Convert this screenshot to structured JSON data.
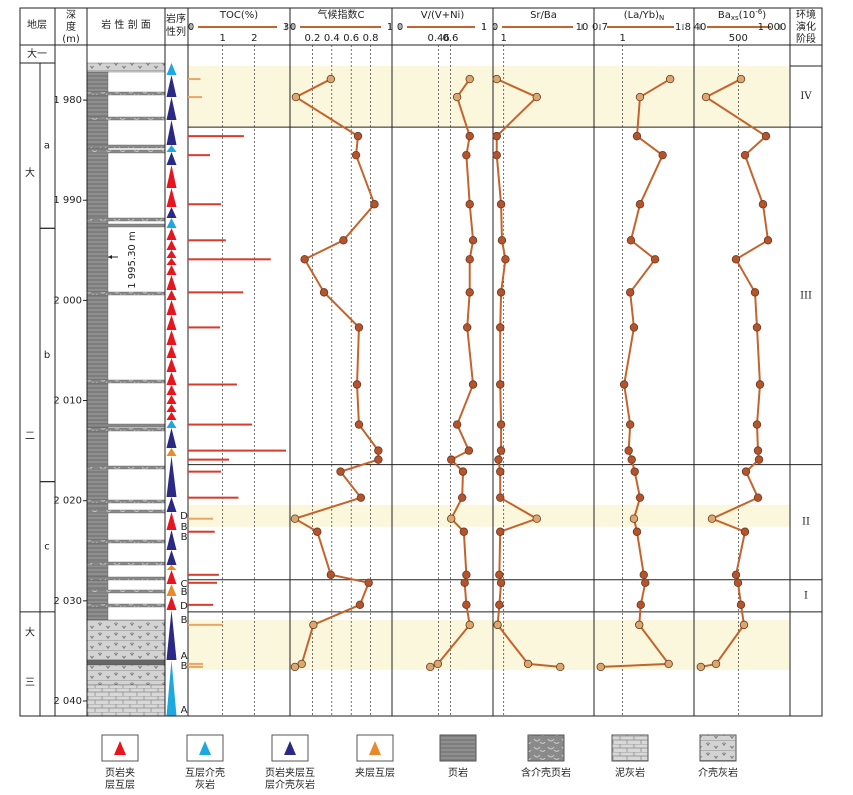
{
  "header": {
    "strata": "地层",
    "depth": [
      "深",
      "度",
      "(m)"
    ],
    "lithology": "岩 性 剖 面",
    "sequence": [
      "岩序",
      "性列"
    ],
    "stage": [
      "环境",
      "演化",
      "阶段"
    ]
  },
  "strata": [
    {
      "lines": [
        "大一"
      ],
      "top": 1974.5,
      "base": 1976.3
    },
    {
      "lines": [
        "大",
        "二"
      ],
      "top": 1976.3,
      "base": 2031.1
    },
    {
      "lines": [
        "大",
        "三"
      ],
      "top": 2031.1,
      "base": 2041.5
    }
  ],
  "members": [
    {
      "label": "a",
      "top": 1976.3,
      "base": 1992.8
    },
    {
      "label": "b",
      "top": 1992.8,
      "base": 2018.1
    },
    {
      "label": "c",
      "top": 2018.1,
      "base": 2031.1
    }
  ],
  "annotation": "1 995.30 m",
  "sequence_marks": [
    "D",
    "B",
    "B",
    "C",
    "B",
    "D",
    "B",
    "A",
    "B",
    "A"
  ],
  "legend": [
    {
      "lines": [
        "页岩夹",
        "层互层"
      ],
      "color": "#e8141e"
    },
    {
      "lines": [
        "互层介壳",
        "灰岩"
      ],
      "color": "#1ea8e0"
    },
    {
      "lines": [
        "页岩夹层互",
        "层介壳灰岩"
      ],
      "color": "#2a2a86"
    },
    {
      "lines": [
        "夹层互层"
      ],
      "color": "#e88a2a"
    },
    {
      "lines": [
        "页岩"
      ]
    },
    {
      "lines": [
        "含介壳页岩"
      ]
    },
    {
      "lines": [
        "泥灰岩"
      ]
    },
    {
      "lines": [
        "介壳灰岩"
      ]
    }
  ],
  "chart_data": {
    "type": "well-log",
    "ylim": [
      1974.5,
      2041.5
    ],
    "yticks": [
      {
        "value": 1980,
        "label": "1 980"
      },
      {
        "value": 1990,
        "label": "1 990"
      },
      {
        "value": 2000,
        "label": "2 000"
      },
      {
        "value": 2010,
        "label": "2 010"
      },
      {
        "value": 2020,
        "label": "2 020"
      },
      {
        "value": 2030,
        "label": "2 030"
      },
      {
        "value": 2040,
        "label": "2 040"
      }
    ],
    "depths": [
      1977.9,
      1979.7,
      1983.6,
      1985.5,
      1990.4,
      1994.0,
      1995.9,
      1999.2,
      2002.7,
      2008.4,
      2012.4,
      2015.0,
      2015.9,
      2017.1,
      2019.7,
      2021.8,
      2023.1,
      2027.4,
      2028.2,
      2030.4,
      2032.4,
      2036.3,
      2036.6
    ],
    "colors": {
      "line": "#c4642c",
      "point": "#b4532c",
      "point_light": "#d8a870",
      "bar": "#d63b2c",
      "bar_light": "#e8a668",
      "band": "#fbf7dc",
      "axis": "#c4642c"
    },
    "highlight_bands": [
      [
        1976.6,
        1982.7
      ],
      [
        2020.4,
        2022.6
      ],
      [
        2031.9,
        2036.9
      ]
    ],
    "stages": [
      {
        "label": "IV",
        "from": 1976.6,
        "to": 1982.7
      },
      {
        "label": "III",
        "from": 1982.7,
        "to": 2016.4
      },
      {
        "label": "II",
        "from": 2016.4,
        "to": 2027.9
      },
      {
        "label": "I",
        "from": 2027.9,
        "to": 2031.1
      }
    ],
    "panels": [
      {
        "style": "bar",
        "title_parts": [
          {
            "text": "TOC(%)"
          }
        ],
        "xlim": [
          0,
          3
        ],
        "xticks": [
          0,
          1,
          2,
          3
        ],
        "values": [
          0.3,
          0.35,
          1.67,
          0.6,
          0.95,
          1.1,
          2.52,
          1.65,
          0.92,
          1.45,
          1.93,
          3.0,
          1.2,
          0.95,
          1.5,
          0.7,
          0.75,
          0.88,
          0.82,
          0.7,
          1.0,
          0.38,
          0.38
        ]
      },
      {
        "style": "line",
        "title_parts": [
          {
            "text": "气候指数C"
          }
        ],
        "xlim": [
          0,
          1
        ],
        "xticks": [
          0,
          0.2,
          0.4,
          0.6,
          0.8,
          1
        ],
        "values": [
          0.39,
          0.03,
          0.67,
          0.65,
          0.84,
          0.52,
          0.12,
          0.32,
          0.68,
          0.66,
          0.68,
          0.88,
          0.88,
          0.49,
          0.7,
          0.02,
          0.25,
          0.39,
          0.78,
          0.69,
          0.21,
          0.09,
          0.02
        ]
      },
      {
        "style": "line",
        "title_parts": [
          {
            "text": "V/(V+Ni)"
          }
        ],
        "xlim": [
          0,
          1
        ],
        "xticks": [
          0,
          0.46,
          0.6,
          1
        ],
        "values": [
          0.83,
          0.68,
          0.83,
          0.79,
          0.83,
          0.87,
          0.83,
          0.83,
          0.8,
          0.87,
          0.68,
          0.82,
          0.61,
          0.75,
          0.74,
          0.61,
          0.76,
          0.79,
          0.77,
          0.79,
          0.83,
          0.45,
          0.36
        ]
      },
      {
        "style": "line",
        "title_parts": [
          {
            "text": "Sr/Ba"
          }
        ],
        "xlim": [
          0,
          10
        ],
        "xticks": [
          0,
          1,
          10
        ],
        "values": [
          0.2,
          4.8,
          0.2,
          0.2,
          0.7,
          0.8,
          1.2,
          0.7,
          0.6,
          0.6,
          0.7,
          0.7,
          0.4,
          0.6,
          0.6,
          4.8,
          0.6,
          0.5,
          0.7,
          0.5,
          0.3,
          3.8,
          7.5
        ]
      },
      {
        "style": "line",
        "title_parts": [
          {
            "text": "(La/Yb)"
          },
          {
            "text": "N",
            "shift": "sub"
          }
        ],
        "xlim": [
          0.7,
          1.8
        ],
        "xticks": [
          0.7,
          1,
          1.8
        ],
        "values": [
          1.63,
          1.23,
          1.19,
          1.53,
          1.23,
          1.11,
          1.43,
          1.1,
          1.15,
          1.02,
          1.1,
          1.08,
          1.12,
          1.16,
          1.23,
          1.15,
          1.19,
          1.28,
          1.3,
          1.24,
          1.22,
          1.61,
          0.71
        ]
      },
      {
        "style": "line",
        "title_parts": [
          {
            "text": "Ba"
          },
          {
            "text": "xs",
            "shift": "sub"
          },
          {
            "text": "(10"
          },
          {
            "text": "-6",
            "shift": "sup"
          },
          {
            "text": ")"
          }
        ],
        "xlim": [
          40,
          1000
        ],
        "xticks": [
          40,
          500,
          {
            "value": 1000,
            "label": "1 000"
          }
        ],
        "values": [
          532,
          112,
          832,
          580,
          796,
          856,
          472,
          700,
          724,
          760,
          724,
          736,
          748,
          592,
          736,
          184,
          580,
          472,
          496,
          532,
          568,
          232,
          50
        ]
      }
    ]
  }
}
